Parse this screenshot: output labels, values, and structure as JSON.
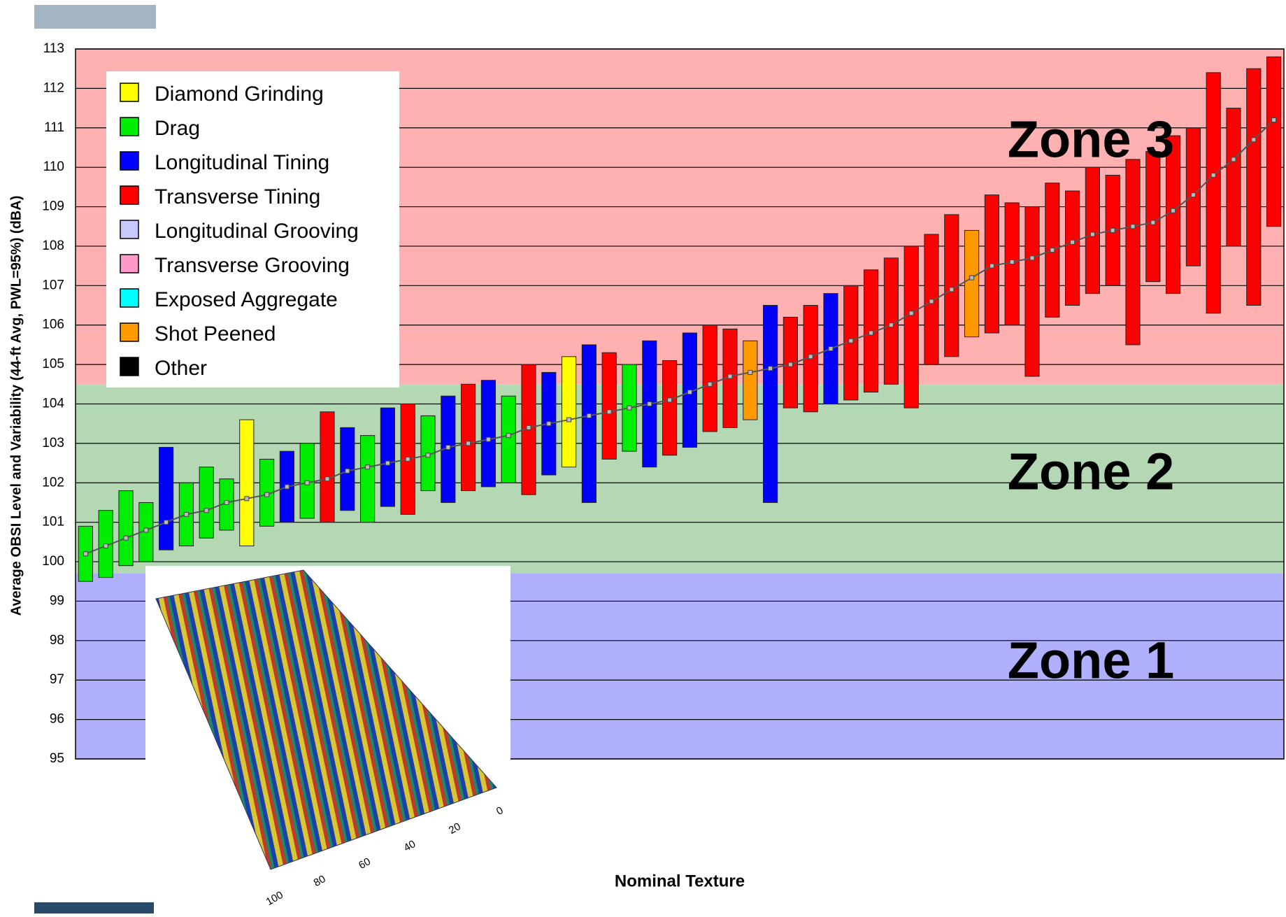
{
  "chart_data": {
    "type": "range-bar",
    "y_label": "Average OBSI Level and Variability (44-ft Avg, PWL=95%) (dBA)",
    "x_label": "Nominal Texture",
    "ylim": [
      95,
      113
    ],
    "yticks": [
      95,
      96,
      97,
      98,
      99,
      100,
      101,
      102,
      103,
      104,
      105,
      106,
      107,
      108,
      109,
      110,
      111,
      112,
      113
    ],
    "grid": true,
    "legend_position": "upper left",
    "series": [
      {
        "name": "Diamond Grinding",
        "color": "#ffff00"
      },
      {
        "name": "Drag",
        "color": "#00ee00"
      },
      {
        "name": "Longitudinal Tining",
        "color": "#0000ff"
      },
      {
        "name": "Transverse Tining",
        "color": "#ff0000"
      },
      {
        "name": "Longitudinal Grooving",
        "color": "#c8c8ff"
      },
      {
        "name": "Transverse Grooving",
        "color": "#ff99cc"
      },
      {
        "name": "Exposed Aggregate",
        "color": "#00ffff"
      },
      {
        "name": "Shot Peened",
        "color": "#ff9900"
      },
      {
        "name": "Other",
        "color": "#000000"
      }
    ],
    "zones": [
      {
        "label": "Zone 1",
        "from": 95,
        "to": 99.7,
        "color": "#b0b0ff"
      },
      {
        "label": "Zone 2",
        "from": 99.7,
        "to": 104.5,
        "color": "#b4d8b4"
      },
      {
        "label": "Zone 3",
        "from": 104.5,
        "to": 113,
        "color": "#ffb0b0"
      }
    ],
    "boxes": {
      "kind": [
        1,
        1,
        1,
        1,
        2,
        1,
        1,
        1,
        0,
        1,
        2,
        1,
        3,
        2,
        1,
        2,
        3,
        1,
        2,
        3,
        2,
        1,
        3,
        2,
        0,
        2,
        3,
        1,
        2,
        3,
        2,
        3,
        3,
        7,
        2,
        3,
        3,
        2,
        3,
        3,
        3,
        3,
        3,
        3,
        7,
        3,
        3,
        3,
        3,
        3,
        3,
        3,
        3,
        3,
        3,
        3,
        3,
        3,
        3,
        3
      ],
      "mean": [
        100.2,
        100.4,
        100.6,
        100.8,
        101.0,
        101.2,
        101.3,
        101.5,
        101.6,
        101.7,
        101.9,
        102.0,
        102.1,
        102.3,
        102.4,
        102.5,
        102.6,
        102.7,
        102.9,
        103.0,
        103.1,
        103.2,
        103.4,
        103.5,
        103.6,
        103.7,
        103.8,
        103.9,
        104.0,
        104.1,
        104.3,
        104.5,
        104.7,
        104.8,
        104.9,
        105.0,
        105.2,
        105.4,
        105.6,
        105.8,
        106.0,
        106.3,
        106.6,
        106.9,
        107.2,
        107.5,
        107.6,
        107.7,
        107.9,
        108.1,
        108.3,
        108.4,
        108.5,
        108.6,
        108.9,
        109.3,
        109.8,
        110.2,
        110.7,
        111.2
      ],
      "low": [
        99.5,
        99.6,
        99.9,
        100.0,
        100.3,
        100.4,
        100.6,
        100.8,
        100.4,
        100.9,
        101.0,
        101.1,
        101.0,
        101.3,
        101.0,
        101.4,
        101.2,
        101.8,
        101.5,
        101.8,
        101.9,
        102.0,
        101.7,
        102.2,
        102.4,
        101.5,
        102.6,
        102.8,
        102.4,
        102.7,
        102.9,
        103.3,
        103.4,
        103.6,
        101.5,
        103.9,
        103.8,
        104.0,
        104.1,
        104.3,
        104.5,
        103.9,
        105.0,
        105.2,
        105.7,
        105.8,
        106.0,
        104.7,
        106.2,
        106.5,
        106.8,
        107.0,
        105.5,
        107.1,
        106.8,
        107.5,
        106.3,
        108.0,
        106.5,
        108.5
      ],
      "high": [
        100.9,
        101.3,
        101.8,
        101.5,
        102.9,
        102.0,
        102.4,
        102.1,
        103.6,
        102.6,
        102.8,
        103.0,
        103.8,
        103.4,
        103.2,
        103.9,
        104.0,
        103.7,
        104.2,
        104.5,
        104.6,
        104.2,
        105.0,
        104.8,
        105.2,
        105.5,
        105.3,
        105.0,
        105.6,
        105.1,
        105.8,
        106.0,
        105.9,
        105.6,
        106.5,
        106.2,
        106.5,
        106.8,
        107.0,
        107.4,
        107.7,
        108.0,
        108.3,
        108.8,
        108.4,
        109.3,
        109.1,
        109.0,
        109.6,
        109.4,
        110.0,
        109.8,
        110.2,
        110.4,
        110.8,
        111.0,
        112.4,
        111.5,
        112.5,
        112.8
      ]
    },
    "inset": {
      "ticks": [
        0,
        20,
        40,
        60,
        80,
        100
      ]
    }
  }
}
